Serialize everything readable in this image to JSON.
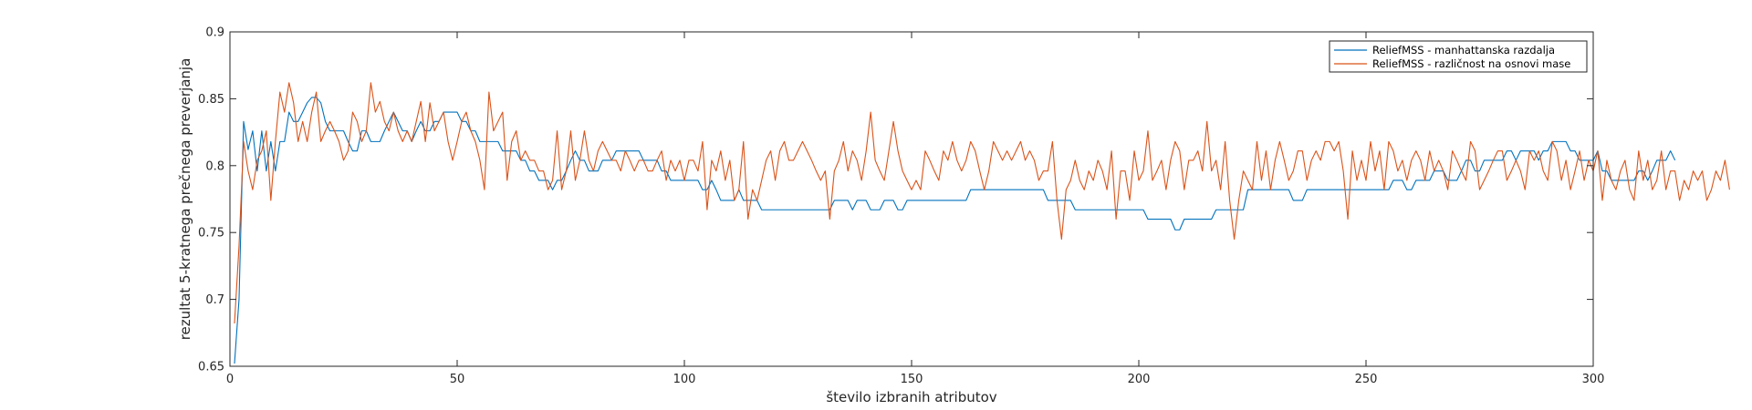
{
  "chart_data": {
    "type": "line",
    "xlabel": "število izbranih atributov",
    "ylabel": "rezultat 5-kratnega prečnega preverjanja",
    "xlim": [
      0,
      300
    ],
    "ylim": [
      0.65,
      0.9
    ],
    "xticks": [
      0,
      50,
      100,
      150,
      200,
      250,
      300
    ],
    "yticks": [
      0.65,
      0.7,
      0.75,
      0.8,
      0.85,
      0.9
    ],
    "xtick_labels": [
      "0",
      "50",
      "100",
      "150",
      "200",
      "250",
      "300"
    ],
    "ytick_labels": [
      "0.65",
      "0.7",
      "0.75",
      "0.8",
      "0.85",
      "0.9"
    ],
    "grid": false,
    "legend_position": "top-right",
    "series": [
      {
        "name": "ReliefMSS - manhattanska razdalja",
        "color": "#0072BD",
        "values": [
          0.652,
          0.7,
          0.833,
          0.812,
          0.826,
          0.796,
          0.826,
          0.796,
          0.818,
          0.796,
          0.818,
          0.818,
          0.84,
          0.833,
          0.833,
          0.84,
          0.847,
          0.851,
          0.851,
          0.847,
          0.833,
          0.826,
          0.826,
          0.826,
          0.826,
          0.818,
          0.811,
          0.811,
          0.826,
          0.826,
          0.818,
          0.818,
          0.818,
          0.826,
          0.833,
          0.84,
          0.833,
          0.826,
          0.826,
          0.818,
          0.826,
          0.833,
          0.826,
          0.826,
          0.833,
          0.833,
          0.84,
          0.84,
          0.84,
          0.84,
          0.833,
          0.833,
          0.826,
          0.826,
          0.818,
          0.818,
          0.818,
          0.818,
          0.818,
          0.811,
          0.811,
          0.811,
          0.811,
          0.804,
          0.804,
          0.796,
          0.796,
          0.789,
          0.789,
          0.789,
          0.782,
          0.789,
          0.789,
          0.796,
          0.804,
          0.811,
          0.804,
          0.804,
          0.796,
          0.796,
          0.796,
          0.804,
          0.804,
          0.804,
          0.811,
          0.811,
          0.811,
          0.811,
          0.811,
          0.811,
          0.804,
          0.804,
          0.804,
          0.804,
          0.796,
          0.796,
          0.789,
          0.789,
          0.789,
          0.789,
          0.789,
          0.789,
          0.789,
          0.782,
          0.782,
          0.789,
          0.782,
          0.774,
          0.774,
          0.774,
          0.774,
          0.782,
          0.774,
          0.774,
          0.774,
          0.774,
          0.767,
          0.767,
          0.767,
          0.767,
          0.767,
          0.767,
          0.767,
          0.767,
          0.767,
          0.767,
          0.767,
          0.767,
          0.767,
          0.767,
          0.767,
          0.767,
          0.774,
          0.774,
          0.774,
          0.774,
          0.767,
          0.774,
          0.774,
          0.774,
          0.767,
          0.767,
          0.767,
          0.774,
          0.774,
          0.774,
          0.767,
          0.767,
          0.774,
          0.774,
          0.774,
          0.774,
          0.774,
          0.774,
          0.774,
          0.774,
          0.774,
          0.774,
          0.774,
          0.774,
          0.774,
          0.774,
          0.782,
          0.782,
          0.782,
          0.782,
          0.782,
          0.782,
          0.782,
          0.782,
          0.782,
          0.782,
          0.782,
          0.782,
          0.782,
          0.782,
          0.782,
          0.782,
          0.782,
          0.774,
          0.774,
          0.774,
          0.774,
          0.774,
          0.774,
          0.767,
          0.767,
          0.767,
          0.767,
          0.767,
          0.767,
          0.767,
          0.767,
          0.767,
          0.767,
          0.767,
          0.767,
          0.767,
          0.767,
          0.767,
          0.767,
          0.76,
          0.76,
          0.76,
          0.76,
          0.76,
          0.76,
          0.752,
          0.752,
          0.76,
          0.76,
          0.76,
          0.76,
          0.76,
          0.76,
          0.76,
          0.767,
          0.767,
          0.767,
          0.767,
          0.767,
          0.767,
          0.767,
          0.782,
          0.782,
          0.782,
          0.782,
          0.782,
          0.782,
          0.782,
          0.782,
          0.782,
          0.782,
          0.774,
          0.774,
          0.774,
          0.782,
          0.782,
          0.782,
          0.782,
          0.782,
          0.782,
          0.782,
          0.782,
          0.782,
          0.782,
          0.782,
          0.782,
          0.782,
          0.782,
          0.782,
          0.782,
          0.782,
          0.782,
          0.782,
          0.789,
          0.789,
          0.789,
          0.782,
          0.782,
          0.789,
          0.789,
          0.789,
          0.789,
          0.796,
          0.796,
          0.796,
          0.789,
          0.789,
          0.789,
          0.796,
          0.804,
          0.804,
          0.796,
          0.796,
          0.804,
          0.804,
          0.804,
          0.804,
          0.804,
          0.811,
          0.811,
          0.804,
          0.811,
          0.811,
          0.811,
          0.811,
          0.804,
          0.811,
          0.811,
          0.818,
          0.818,
          0.818,
          0.818,
          0.811,
          0.811,
          0.804,
          0.804,
          0.804,
          0.804,
          0.811,
          0.796,
          0.796,
          0.789,
          0.789,
          0.789,
          0.789,
          0.789,
          0.789,
          0.796,
          0.796,
          0.789,
          0.796,
          0.804,
          0.804,
          0.804,
          0.811,
          0.804
        ]
      },
      {
        "name": "ReliefMSS - različnost na osnovi mase",
        "color": "#D95319",
        "values": [
          0.682,
          0.74,
          0.818,
          0.796,
          0.782,
          0.804,
          0.811,
          0.826,
          0.774,
          0.818,
          0.855,
          0.84,
          0.862,
          0.847,
          0.818,
          0.833,
          0.818,
          0.84,
          0.855,
          0.818,
          0.826,
          0.833,
          0.826,
          0.818,
          0.804,
          0.811,
          0.84,
          0.833,
          0.818,
          0.826,
          0.862,
          0.84,
          0.848,
          0.833,
          0.826,
          0.84,
          0.826,
          0.818,
          0.826,
          0.818,
          0.833,
          0.848,
          0.818,
          0.847,
          0.826,
          0.833,
          0.84,
          0.818,
          0.804,
          0.818,
          0.833,
          0.84,
          0.826,
          0.818,
          0.804,
          0.782,
          0.855,
          0.826,
          0.833,
          0.84,
          0.789,
          0.818,
          0.826,
          0.804,
          0.811,
          0.804,
          0.804,
          0.796,
          0.796,
          0.782,
          0.789,
          0.826,
          0.782,
          0.796,
          0.826,
          0.789,
          0.804,
          0.826,
          0.804,
          0.796,
          0.811,
          0.818,
          0.811,
          0.804,
          0.804,
          0.796,
          0.811,
          0.804,
          0.796,
          0.804,
          0.804,
          0.796,
          0.796,
          0.804,
          0.811,
          0.789,
          0.804,
          0.796,
          0.804,
          0.789,
          0.804,
          0.804,
          0.796,
          0.818,
          0.767,
          0.804,
          0.796,
          0.811,
          0.789,
          0.804,
          0.774,
          0.782,
          0.818,
          0.76,
          0.782,
          0.774,
          0.789,
          0.804,
          0.811,
          0.789,
          0.811,
          0.818,
          0.804,
          0.804,
          0.811,
          0.818,
          0.811,
          0.804,
          0.796,
          0.789,
          0.796,
          0.76,
          0.796,
          0.804,
          0.818,
          0.796,
          0.811,
          0.804,
          0.789,
          0.811,
          0.84,
          0.804,
          0.796,
          0.789,
          0.811,
          0.833,
          0.811,
          0.796,
          0.789,
          0.782,
          0.789,
          0.782,
          0.811,
          0.804,
          0.796,
          0.789,
          0.811,
          0.804,
          0.818,
          0.804,
          0.796,
          0.804,
          0.818,
          0.811,
          0.796,
          0.782,
          0.796,
          0.818,
          0.811,
          0.804,
          0.811,
          0.804,
          0.811,
          0.818,
          0.804,
          0.811,
          0.804,
          0.789,
          0.796,
          0.796,
          0.818,
          0.774,
          0.745,
          0.782,
          0.789,
          0.804,
          0.789,
          0.782,
          0.796,
          0.789,
          0.804,
          0.796,
          0.782,
          0.811,
          0.76,
          0.796,
          0.796,
          0.774,
          0.811,
          0.789,
          0.796,
          0.826,
          0.789,
          0.796,
          0.804,
          0.782,
          0.804,
          0.818,
          0.811,
          0.782,
          0.804,
          0.804,
          0.811,
          0.796,
          0.833,
          0.796,
          0.804,
          0.782,
          0.818,
          0.774,
          0.745,
          0.774,
          0.796,
          0.789,
          0.782,
          0.818,
          0.789,
          0.811,
          0.782,
          0.804,
          0.818,
          0.804,
          0.789,
          0.796,
          0.811,
          0.811,
          0.789,
          0.804,
          0.811,
          0.804,
          0.818,
          0.818,
          0.811,
          0.818,
          0.796,
          0.76,
          0.811,
          0.789,
          0.804,
          0.789,
          0.818,
          0.796,
          0.811,
          0.782,
          0.818,
          0.811,
          0.796,
          0.804,
          0.789,
          0.804,
          0.811,
          0.804,
          0.789,
          0.811,
          0.796,
          0.804,
          0.796,
          0.782,
          0.811,
          0.804,
          0.796,
          0.789,
          0.818,
          0.811,
          0.782,
          0.789,
          0.796,
          0.804,
          0.811,
          0.811,
          0.789,
          0.796,
          0.804,
          0.796,
          0.782,
          0.811,
          0.804,
          0.811,
          0.796,
          0.789,
          0.818,
          0.811,
          0.789,
          0.804,
          0.782,
          0.796,
          0.811,
          0.789,
          0.804,
          0.796,
          0.811,
          0.774,
          0.804,
          0.789,
          0.782,
          0.796,
          0.804,
          0.782,
          0.774,
          0.811,
          0.789,
          0.804,
          0.782,
          0.789,
          0.811,
          0.782,
          0.796,
          0.796,
          0.774,
          0.789,
          0.782,
          0.796,
          0.789,
          0.796,
          0.774,
          0.782,
          0.796,
          0.789,
          0.804,
          0.782
        ]
      }
    ]
  }
}
